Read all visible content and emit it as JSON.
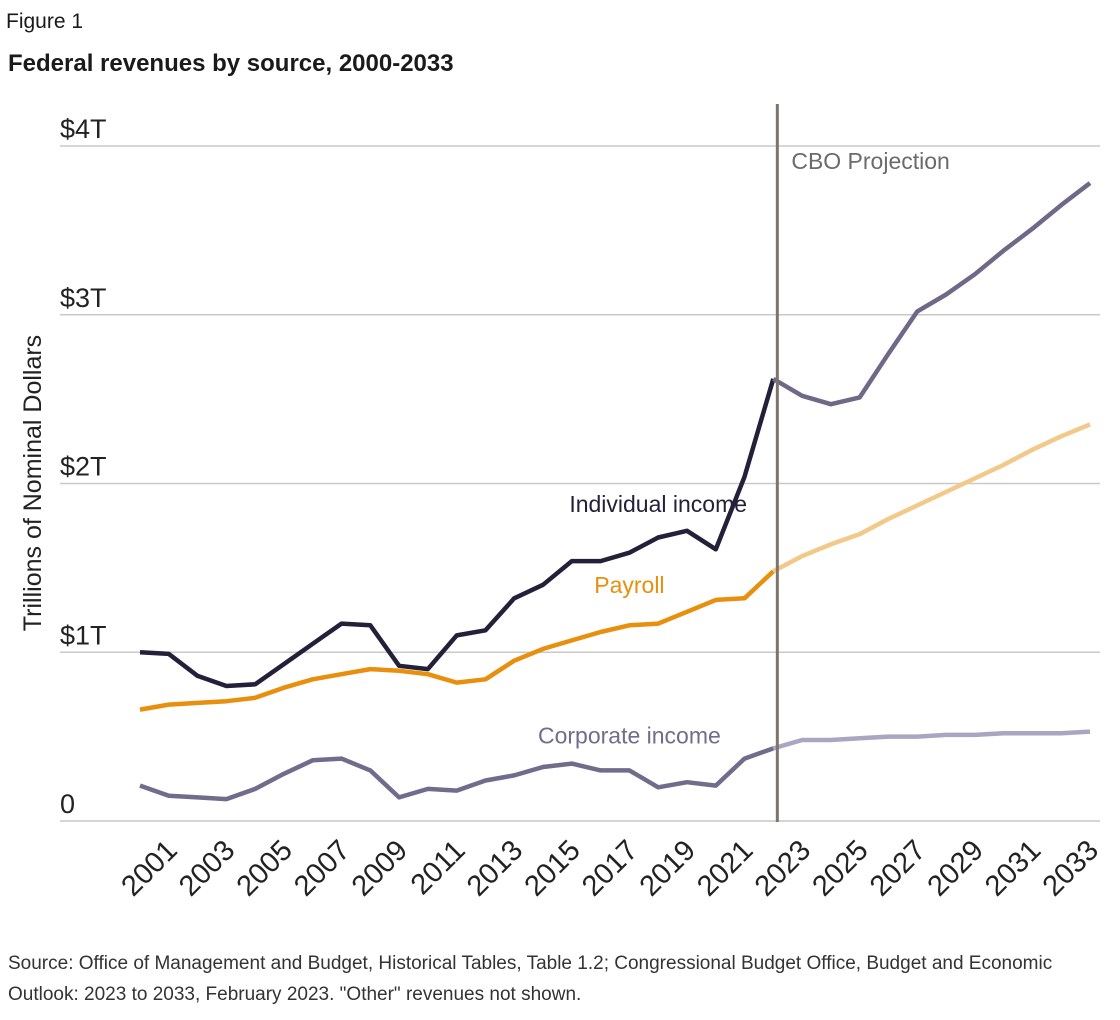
{
  "figure_label": "Figure 1",
  "title": "Federal revenues by source, 2000-2033",
  "source_note": "Source: Office of Management and Budget, Historical Tables, Table 1.2; Congressional Budget Office, Budget and Economic Outlook: 2023 to 2033, February 2023. \"Other\" revenues not shown.",
  "colors": {
    "individual_actual": "#25203a",
    "individual_projection": "#6f6987",
    "payroll_actual": "#e8900e",
    "payroll_projection": "#f3c98a",
    "corporate_actual": "#726c8c",
    "corporate_projection": "#aaa6c2",
    "projection_line": "#7d746c",
    "grid": "#c9c9c9"
  },
  "chart_data": {
    "type": "line",
    "ylabel": "Trillions of Nominal Dollars",
    "ylim": [
      0,
      4
    ],
    "y_ticks": [
      {
        "value": 0,
        "label": "0"
      },
      {
        "value": 1,
        "label": "$1T"
      },
      {
        "value": 2,
        "label": "$2T"
      },
      {
        "value": 3,
        "label": "$3T"
      },
      {
        "value": 4,
        "label": "$4T"
      }
    ],
    "xlim": [
      2000,
      2033
    ],
    "x_tick_labels": [
      "2001",
      "2003",
      "2005",
      "2007",
      "2009",
      "2011",
      "2013",
      "2015",
      "2017",
      "2019",
      "2021",
      "2023",
      "2025",
      "2027",
      "2029",
      "2031",
      "2033"
    ],
    "projection_start": 2022,
    "projection_label": "CBO Projection",
    "grid": true,
    "x": [
      2000,
      2001,
      2002,
      2003,
      2004,
      2005,
      2006,
      2007,
      2008,
      2009,
      2010,
      2011,
      2012,
      2013,
      2014,
      2015,
      2016,
      2017,
      2018,
      2019,
      2020,
      2021,
      2022,
      2023,
      2024,
      2025,
      2026,
      2027,
      2028,
      2029,
      2030,
      2031,
      2032,
      2033
    ],
    "series": [
      {
        "name": "Individual income",
        "values": [
          1.0,
          0.99,
          0.86,
          0.8,
          0.81,
          0.93,
          1.05,
          1.17,
          1.16,
          0.92,
          0.9,
          1.1,
          1.13,
          1.32,
          1.4,
          1.54,
          1.54,
          1.59,
          1.68,
          1.72,
          1.61,
          2.04,
          2.62,
          2.52,
          2.47,
          2.51,
          2.77,
          3.02,
          3.12,
          3.24,
          3.38,
          3.51,
          3.65,
          3.78
        ]
      },
      {
        "name": "Payroll",
        "values": [
          0.66,
          0.69,
          0.7,
          0.71,
          0.73,
          0.79,
          0.84,
          0.87,
          0.9,
          0.89,
          0.87,
          0.82,
          0.84,
          0.95,
          1.02,
          1.07,
          1.12,
          1.16,
          1.17,
          1.24,
          1.31,
          1.32,
          1.48,
          1.57,
          1.64,
          1.7,
          1.79,
          1.87,
          1.95,
          2.03,
          2.11,
          2.2,
          2.28,
          2.35
        ]
      },
      {
        "name": "Corporate income",
        "values": [
          0.21,
          0.15,
          0.14,
          0.13,
          0.19,
          0.28,
          0.36,
          0.37,
          0.3,
          0.14,
          0.19,
          0.18,
          0.24,
          0.27,
          0.32,
          0.34,
          0.3,
          0.3,
          0.2,
          0.23,
          0.21,
          0.37,
          0.43,
          0.48,
          0.48,
          0.49,
          0.5,
          0.5,
          0.51,
          0.51,
          0.52,
          0.52,
          0.52,
          0.53
        ]
      }
    ],
    "annotations": [
      {
        "text": "Individual income",
        "x": 2018,
        "y": 1.83,
        "series": "Individual income"
      },
      {
        "text": "Payroll",
        "x": 2017,
        "y": 1.35,
        "series": "Payroll"
      },
      {
        "text": "Corporate income",
        "x": 2017,
        "y": 0.46,
        "series": "Corporate income"
      }
    ]
  }
}
